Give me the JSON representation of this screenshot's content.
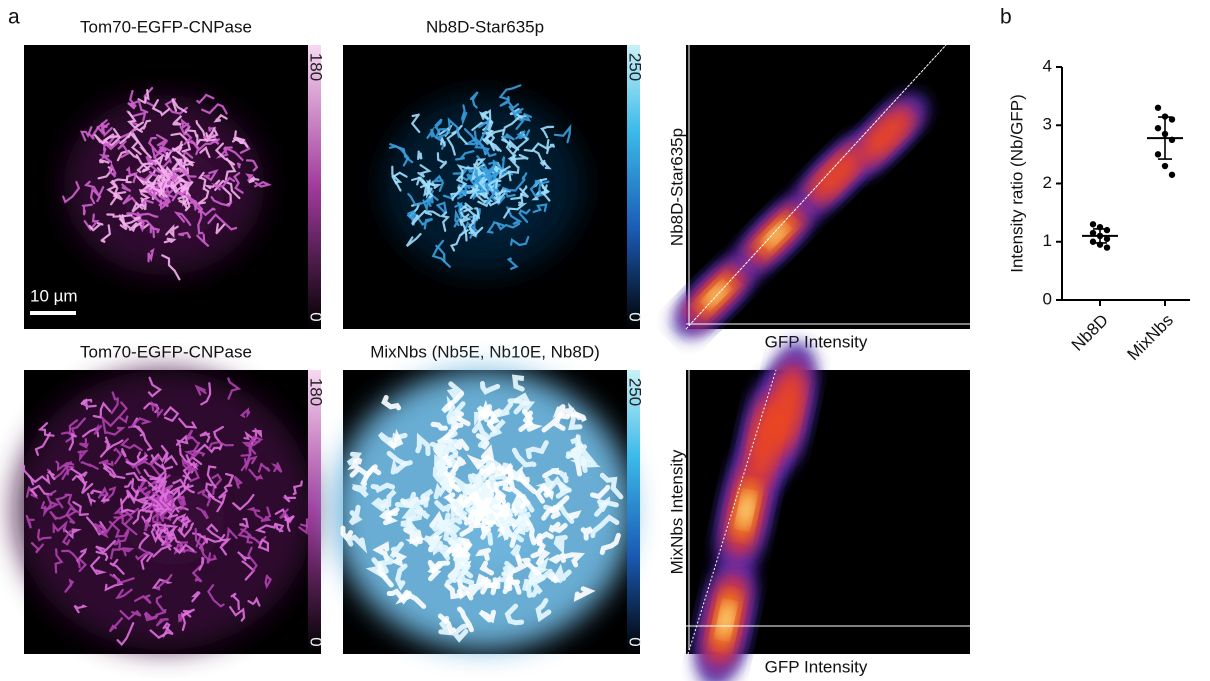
{
  "panel_a": {
    "label": "a",
    "scale_bar": "10 µm",
    "rows": [
      {
        "images": [
          {
            "title": "Tom70-EGFP-CNPase",
            "colorbar": {
              "max": 180,
              "min": 0
            }
          },
          {
            "title": "Nb8D-Star635p",
            "colorbar": {
              "max": 250,
              "min": 0
            }
          }
        ],
        "scatter": {
          "x_label": "GFP Intensity",
          "y_label": "Nb8D-Star635p"
        }
      },
      {
        "images": [
          {
            "title": "Tom70-EGFP-CNPase",
            "colorbar": {
              "max": 180,
              "min": 0
            }
          },
          {
            "title": "MixNbs (Nb5E, Nb10E, Nb8D)",
            "colorbar": {
              "max": 250,
              "min": 0
            }
          }
        ],
        "scatter": {
          "x_label": "GFP Intensity",
          "y_label": "MixNbs Intensity"
        }
      }
    ]
  },
  "panel_b": {
    "label": "b"
  },
  "chart_data": {
    "type": "dot",
    "y_label": "Intensity ratio (Nb/GFP)",
    "categories": [
      "Nb8D",
      "MixNbs"
    ],
    "values": [
      [
        1.3,
        1.25,
        1.2,
        1.15,
        1.1,
        1.05,
        1.0,
        0.95,
        0.9
      ],
      [
        3.3,
        3.15,
        3.1,
        2.95,
        2.85,
        2.75,
        2.5,
        2.3,
        2.15
      ]
    ],
    "means": [
      1.1,
      2.78
    ],
    "sd": [
      0.12,
      0.36
    ],
    "color": "#000000",
    "ylim": [
      0,
      4
    ],
    "yticks": [
      0,
      1,
      2,
      3,
      4
    ]
  }
}
